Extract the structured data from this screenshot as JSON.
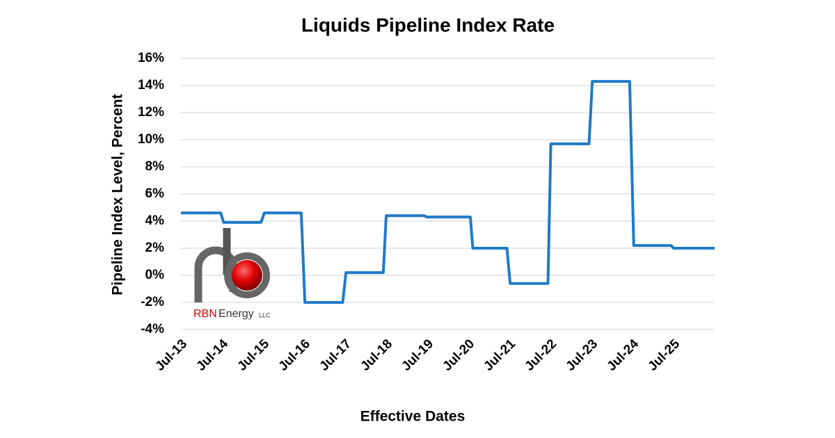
{
  "chart_data": {
    "type": "line",
    "title": "Liquids Pipeline Index Rate",
    "y_label": "Pipeline Index Level, Percent",
    "x_label": "Effective Dates",
    "logo": {
      "brand": "RBN",
      "name": "Energy",
      "suffix": "LLC"
    },
    "grid": true,
    "xlim": [
      2013.5,
      2026.5
    ],
    "xticks": [
      {
        "value": 2013.5,
        "label": "Jul-13"
      },
      {
        "value": 2014.5,
        "label": "Jul-14"
      },
      {
        "value": 2015.5,
        "label": "Jul-15"
      },
      {
        "value": 2016.5,
        "label": "Jul-16"
      },
      {
        "value": 2017.5,
        "label": "Jul-17"
      },
      {
        "value": 2018.5,
        "label": "Jul-18"
      },
      {
        "value": 2019.5,
        "label": "Jul-19"
      },
      {
        "value": 2020.5,
        "label": "Jul-20"
      },
      {
        "value": 2021.5,
        "label": "Jul-21"
      },
      {
        "value": 2022.5,
        "label": "Jul-22"
      },
      {
        "value": 2023.5,
        "label": "Jul-23"
      },
      {
        "value": 2024.5,
        "label": "Jul-24"
      },
      {
        "value": 2025.5,
        "label": "Jul-25"
      }
    ],
    "ylim": [
      -4,
      16
    ],
    "yticks": [
      {
        "value": -4,
        "label": "-4%"
      },
      {
        "value": -2,
        "label": "-2%"
      },
      {
        "value": 0,
        "label": "0%"
      },
      {
        "value": 2,
        "label": "2%"
      },
      {
        "value": 4,
        "label": "4%"
      },
      {
        "value": 6,
        "label": "6%"
      },
      {
        "value": 8,
        "label": "8%"
      },
      {
        "value": 10,
        "label": "10%"
      },
      {
        "value": 12,
        "label": "12%"
      },
      {
        "value": 14,
        "label": "14%"
      },
      {
        "value": 16,
        "label": "16%"
      }
    ],
    "series": [
      {
        "color": "#1f7ac8",
        "x": [
          2013.5,
          2014.47,
          2014.54,
          2015.45,
          2015.53,
          2016.43,
          2016.52,
          2017.44,
          2017.52,
          2018.43,
          2018.5,
          2019.42,
          2019.49,
          2020.55,
          2020.61,
          2021.44,
          2021.52,
          2022.44,
          2022.51,
          2023.44,
          2023.52,
          2024.43,
          2024.53,
          2025.44,
          2025.5,
          2026.5
        ],
        "values": [
          4.6,
          4.6,
          3.9,
          3.9,
          4.6,
          4.6,
          -2.0,
          -2.0,
          0.2,
          0.2,
          4.4,
          4.4,
          4.3,
          4.3,
          2.0,
          2.0,
          -0.6,
          -0.6,
          9.7,
          9.7,
          14.3,
          14.3,
          2.2,
          2.2,
          2.0,
          2.0
        ]
      }
    ]
  }
}
